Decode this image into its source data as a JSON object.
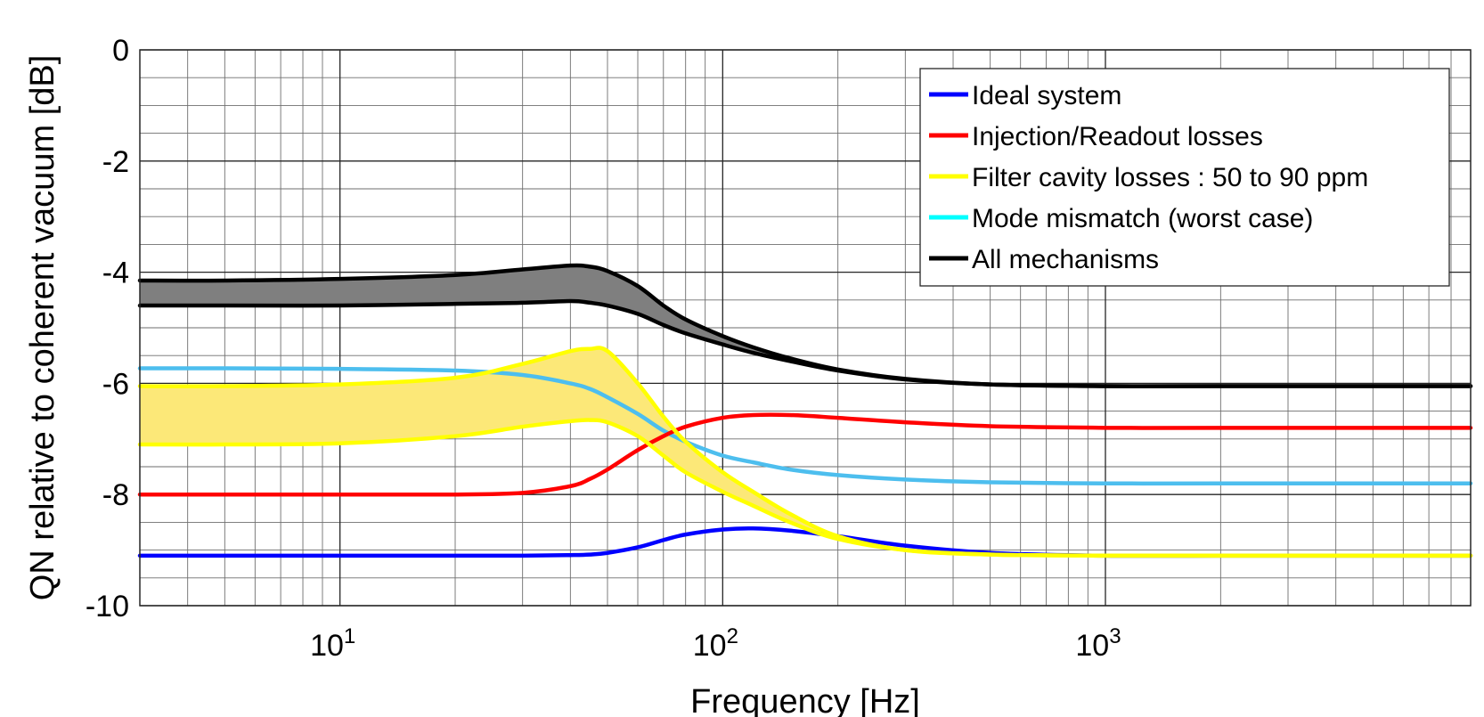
{
  "chart_data": {
    "type": "line",
    "title": "",
    "xlabel": "Frequency [Hz]",
    "ylabel": "QN relative to coherent vacuum [dB]",
    "xscale": "log",
    "xlim": [
      3,
      9000
    ],
    "ylim": [
      -10,
      0
    ],
    "grid": true,
    "legend_location": "top-right",
    "x_ticks": [
      {
        "value": 10,
        "base": "10",
        "exp": "1"
      },
      {
        "value": 100,
        "base": "10",
        "exp": "2"
      },
      {
        "value": 1000,
        "base": "10",
        "exp": "3"
      }
    ],
    "y_ticks": [
      0,
      -2,
      -4,
      -6,
      -8,
      -10
    ],
    "x": [
      3,
      5,
      10,
      20,
      30,
      40,
      45,
      50,
      60,
      70,
      80,
      100,
      120,
      150,
      200,
      300,
      500,
      1000,
      2000,
      5000,
      9000
    ],
    "series": [
      {
        "name": "Ideal system",
        "color": "#0000ff",
        "legend": true,
        "values": [
          -9.1,
          -9.1,
          -9.1,
          -9.1,
          -9.1,
          -9.09,
          -9.08,
          -9.05,
          -8.95,
          -8.82,
          -8.72,
          -8.63,
          -8.61,
          -8.65,
          -8.75,
          -8.92,
          -9.05,
          -9.1,
          -9.1,
          -9.1,
          -9.1
        ]
      },
      {
        "name": "Injection/Readout losses",
        "color": "#ff0000",
        "legend": true,
        "values": [
          -8.0,
          -8.0,
          -8.0,
          -8.0,
          -7.97,
          -7.85,
          -7.72,
          -7.55,
          -7.2,
          -6.95,
          -6.78,
          -6.62,
          -6.57,
          -6.57,
          -6.62,
          -6.7,
          -6.77,
          -6.8,
          -6.8,
          -6.8,
          -6.8
        ]
      },
      {
        "name": "Filter cavity losses : 50 to 90 ppm",
        "color": "#ffff00",
        "legend": true,
        "band_fill": "#fce878",
        "values": [
          -6.05,
          -6.05,
          -6.02,
          -5.9,
          -5.65,
          -5.42,
          -5.38,
          -5.42,
          -6.0,
          -6.6,
          -7.05,
          -7.6,
          -7.95,
          -8.35,
          -8.75,
          -9.0,
          -9.08,
          -9.1,
          -9.1,
          -9.1,
          -9.1
        ],
        "values_lower": [
          -7.1,
          -7.1,
          -7.08,
          -6.95,
          -6.78,
          -6.68,
          -6.66,
          -6.7,
          -6.95,
          -7.3,
          -7.6,
          -7.95,
          -8.2,
          -8.5,
          -8.8,
          -9.0,
          -9.08,
          -9.1,
          -9.1,
          -9.1,
          -9.1
        ]
      },
      {
        "name": "Mode mismatch (worst case)",
        "color": "#00ffff",
        "line_color": "#4dbeee",
        "legend": true,
        "values": [
          -5.73,
          -5.73,
          -5.74,
          -5.77,
          -5.85,
          -6.0,
          -6.1,
          -6.25,
          -6.55,
          -6.85,
          -7.05,
          -7.3,
          -7.42,
          -7.55,
          -7.65,
          -7.73,
          -7.78,
          -7.8,
          -7.8,
          -7.8,
          -7.8
        ]
      },
      {
        "name": "All mechanisms",
        "color": "#000000",
        "legend": true,
        "band_fill": "#7f7f7f",
        "values": [
          -4.15,
          -4.15,
          -4.12,
          -4.05,
          -3.95,
          -3.88,
          -3.9,
          -3.98,
          -4.25,
          -4.6,
          -4.85,
          -5.15,
          -5.35,
          -5.55,
          -5.75,
          -5.92,
          -6.02,
          -6.05,
          -6.05,
          -6.05,
          -6.05
        ],
        "values_lower": [
          -4.6,
          -4.6,
          -4.6,
          -4.57,
          -4.55,
          -4.52,
          -4.55,
          -4.6,
          -4.75,
          -4.95,
          -5.1,
          -5.3,
          -5.45,
          -5.6,
          -5.77,
          -5.93,
          -6.02,
          -6.05,
          -6.05,
          -6.05,
          -6.05
        ]
      }
    ]
  }
}
